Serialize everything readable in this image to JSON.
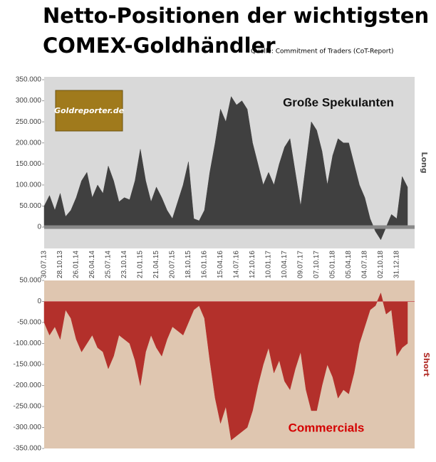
{
  "title": [
    "Netto-Positionen der wichtigsten",
    "COMEX-Goldhändler"
  ],
  "source": "Quelle: Commitment of Traders (CoT-Report)",
  "logo": "Goldreporter.de",
  "chart_data": [
    {
      "type": "area",
      "annotation": "Große Spekulanten",
      "side_label": "Long",
      "categories": [
        "30.07.13",
        null,
        null,
        "28.10.13",
        null,
        null,
        "26.01.14",
        null,
        null,
        "26.04.14",
        null,
        null,
        "25.07.14",
        null,
        null,
        "23.10.14",
        null,
        null,
        "21.01.15",
        null,
        null,
        "21.04.15",
        null,
        null,
        "20.07.15",
        null,
        null,
        "18.10.15",
        null,
        null,
        "16.01.16",
        null,
        null,
        "15.04.16",
        null,
        null,
        "14.07.16",
        null,
        null,
        "12.10.16",
        null,
        null,
        "10.01.17",
        null,
        null,
        "10.04.17",
        null,
        null,
        "09.07.17",
        null,
        null,
        "07.10.17",
        null,
        null,
        "05.01.18",
        null,
        null,
        "05.04.18",
        null,
        null,
        "04.07.18",
        null,
        null,
        "02.10.18",
        null,
        null,
        "31.12.18",
        null,
        null
      ],
      "series": [
        {
          "name": "Große Spekulanten",
          "color": "#404040",
          "values": [
            50000,
            75000,
            40000,
            80000,
            25000,
            40000,
            70000,
            110000,
            130000,
            70000,
            100000,
            80000,
            145000,
            110000,
            60000,
            70000,
            65000,
            110000,
            185000,
            110000,
            60000,
            95000,
            70000,
            40000,
            20000,
            60000,
            100000,
            155000,
            20000,
            15000,
            40000,
            130000,
            200000,
            280000,
            250000,
            310000,
            290000,
            300000,
            280000,
            200000,
            150000,
            100000,
            130000,
            100000,
            150000,
            190000,
            210000,
            130000,
            50000,
            150000,
            250000,
            230000,
            180000,
            100000,
            170000,
            210000,
            200000,
            200000,
            150000,
            100000,
            70000,
            20000,
            -10000,
            -30000,
            0,
            30000,
            20000,
            120000,
            95000
          ]
        }
      ],
      "ylim": [
        -50000,
        350000
      ],
      "yticks": [
        0,
        {
          "value": 50000,
          "label": "50.000"
        },
        {
          "value": 100000,
          "label": "100.000"
        },
        {
          "value": 150000,
          "label": "150.000"
        },
        {
          "value": 200000,
          "label": "200.000"
        },
        {
          "value": 250000,
          "label": "250.000"
        },
        {
          "value": 300000,
          "label": "300.000"
        },
        {
          "value": 350000,
          "label": "350.000"
        }
      ],
      "background": "#d9d9d9"
    },
    {
      "type": "area",
      "annotation": "Commercials",
      "side_label": "Short",
      "series": [
        {
          "name": "Commercials",
          "color": "#b3302b",
          "values": [
            -50000,
            -80000,
            -60000,
            -90000,
            -20000,
            -40000,
            -90000,
            -120000,
            -100000,
            -80000,
            -110000,
            -120000,
            -160000,
            -130000,
            -80000,
            -90000,
            -100000,
            -140000,
            -200000,
            -120000,
            -80000,
            -110000,
            -130000,
            -90000,
            -60000,
            -70000,
            -80000,
            -50000,
            -20000,
            -10000,
            -40000,
            -140000,
            -230000,
            -290000,
            -250000,
            -330000,
            -320000,
            -310000,
            -300000,
            -260000,
            -200000,
            -150000,
            -110000,
            -170000,
            -140000,
            -190000,
            -210000,
            -160000,
            -120000,
            -210000,
            -260000,
            -260000,
            -200000,
            -150000,
            -180000,
            -230000,
            -210000,
            -220000,
            -170000,
            -100000,
            -60000,
            -20000,
            -10000,
            20000,
            -30000,
            -20000,
            -130000,
            -110000,
            -100000
          ]
        }
      ],
      "ylim": [
        -350000,
        50000
      ],
      "yticks": [
        {
          "value": -350000,
          "label": "-350.000"
        },
        {
          "value": -300000,
          "label": "-300.000"
        },
        {
          "value": -250000,
          "label": "-250.000"
        },
        {
          "value": -200000,
          "label": "-200.000"
        },
        {
          "value": -150000,
          "label": "-150.000"
        },
        {
          "value": -100000,
          "label": "-100.000"
        },
        {
          "value": -50000,
          "label": "-50.000"
        },
        0,
        {
          "value": 50000,
          "label": "50.000"
        }
      ],
      "background": "#dfc6b0"
    }
  ]
}
